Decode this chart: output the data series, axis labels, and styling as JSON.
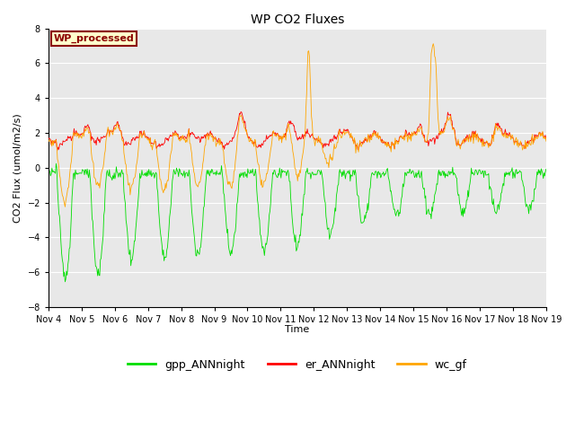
{
  "title": "WP CO2 Fluxes",
  "ylabel": "CO2 Flux (umol/m2/s)",
  "xlabel": "Time",
  "ylim": [
    -8,
    8
  ],
  "yticks": [
    -8,
    -6,
    -4,
    -2,
    0,
    2,
    4,
    6,
    8
  ],
  "xtick_labels": [
    "Nov 4",
    "Nov 5",
    "Nov 6",
    "Nov 7",
    "Nov 8",
    "Nov 9",
    "Nov 10",
    "Nov 11",
    "Nov 12",
    "Nov 13",
    "Nov 14",
    "Nov 15",
    "Nov 16",
    "Nov 17",
    "Nov 18",
    "Nov 19"
  ],
  "legend_entries": [
    "gpp_ANNnight",
    "er_ANNnight",
    "wc_gf"
  ],
  "legend_colors": [
    "#00dd00",
    "#ff0000",
    "#ffa500"
  ],
  "watermark_text": "WP_processed",
  "watermark_fg": "#8b0000",
  "watermark_bg": "#ffffcc",
  "watermark_border": "#8b0000",
  "plot_bg": "#e8e8e8",
  "fig_bg": "#ffffff",
  "grid_color": "#ffffff",
  "gpp_color": "#00dd00",
  "er_color": "#ff0000",
  "wc_color": "#ffa500",
  "n_days": 15,
  "pts_per_day": 48
}
